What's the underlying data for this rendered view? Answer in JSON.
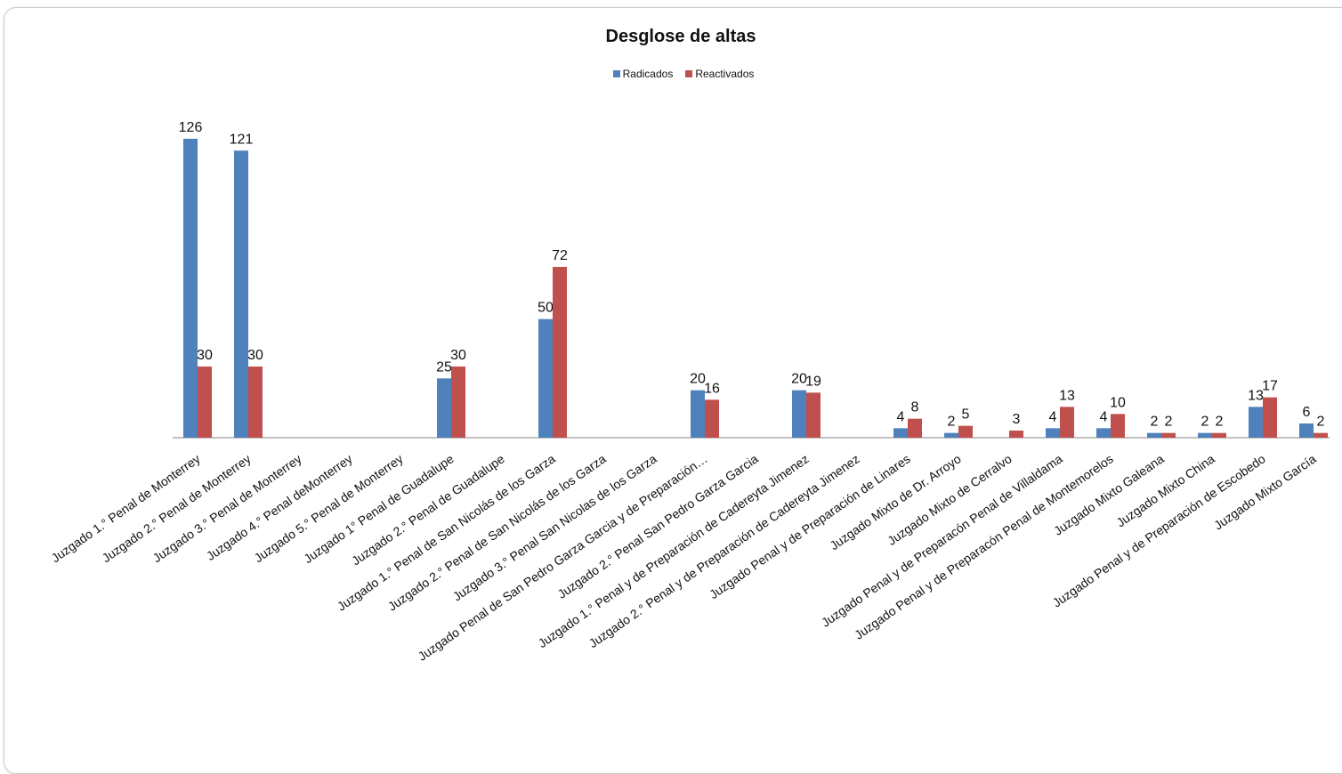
{
  "colors": {
    "radicados": "#4F81BD",
    "reactivados": "#C0504D",
    "axis": "#868686"
  },
  "chart_data": {
    "type": "bar",
    "title": "Desglose de altas",
    "legend_position": "top",
    "grid": false,
    "ylim": [
      0,
      130
    ],
    "categories": [
      "Juzgado 1.° Penal  de Monterrey",
      "Juzgado 2.° Penal de Monterrey",
      "Juzgado 3.° Penal de Monterrey",
      "Juzgado 4.° Penal deMonterrey",
      "Juzgado 5.° Penal de Monterrey",
      "Juzgado 1° Penal de Guadalupe",
      "Juzgado 2.° Penal de Guadalupe",
      "Juzgado 1.° Penal de San Nicolás de los Garza",
      "Juzgado 2.° Penal de  San Nicolás de los Garza",
      "Juzgado 3.° Penal San Nicolas de  los Garza",
      "Juzgado Penal de San Pedro Garza Garcia y de Preparación…",
      "Juzgado 2.° Penal San Pedro Garza Garcia",
      "Juzgado 1.° Penal y de Preparación de Cadereyta Jimenez",
      "Juzgado 2.° Penal y de Preparación de  Cadereyta Jimenez",
      "Juzgado Penal y de Preparación de Linares",
      "Juzgado Mixto de  Dr. Arroyo",
      "Juzgado Mixto de  Cerralvo",
      "Juzgado Penal y de Preparacón Penal  de Villaldama",
      "Juzgado Penal y de Preparacón Penal  de Montemorelos",
      "Juzgado Mixto Galeana",
      "Juzgado Mixto China",
      "Juzgado Penal y de Preparación de Escobedo",
      "Juzgado Mixto García"
    ],
    "series": [
      {
        "name": "Radicados",
        "values": [
          126,
          121,
          null,
          null,
          null,
          25,
          null,
          50,
          null,
          null,
          20,
          null,
          20,
          null,
          4,
          2,
          null,
          4,
          4,
          2,
          2,
          13,
          6
        ]
      },
      {
        "name": "Reactivados",
        "values": [
          30,
          30,
          null,
          null,
          null,
          30,
          null,
          72,
          null,
          null,
          16,
          null,
          19,
          null,
          8,
          5,
          3,
          13,
          10,
          2,
          2,
          17,
          2
        ]
      }
    ]
  }
}
